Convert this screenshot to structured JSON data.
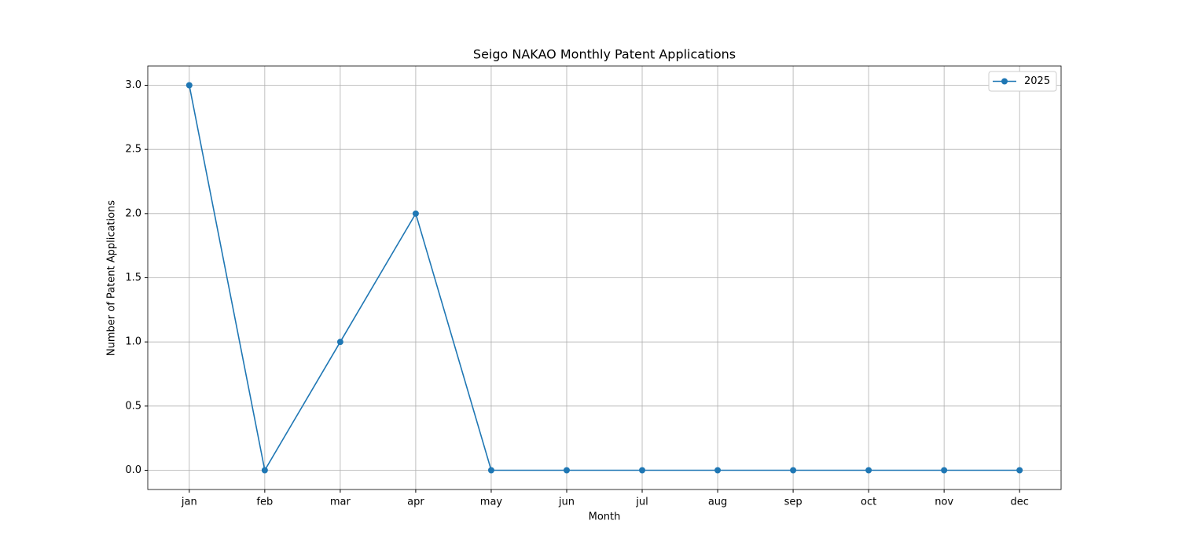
{
  "chart_data": {
    "type": "line",
    "title": "Seigo NAKAO Monthly Patent Applications",
    "x_label": "Month",
    "y_label": "Number of Patent Applications",
    "categories": [
      "jan",
      "feb",
      "mar",
      "apr",
      "may",
      "jun",
      "jul",
      "aug",
      "sep",
      "oct",
      "nov",
      "dec"
    ],
    "series": [
      {
        "name": "2025",
        "color": "#1f77b4",
        "values": [
          3,
          0,
          1,
          2,
          0,
          0,
          0,
          0,
          0,
          0,
          0,
          0
        ]
      }
    ],
    "ylim": [
      -0.15,
      3.15
    ],
    "yticks": [
      {
        "value": 0,
        "label": "0.0"
      },
      {
        "value": 0.5,
        "label": "0.5"
      },
      {
        "value": 1,
        "label": "1.0"
      },
      {
        "value": 1.5,
        "label": "1.5"
      },
      {
        "value": 2,
        "label": "2.0"
      },
      {
        "value": 2.5,
        "label": "2.5"
      },
      {
        "value": 3,
        "label": "3.0"
      }
    ],
    "grid": true,
    "legend": "upper right"
  }
}
